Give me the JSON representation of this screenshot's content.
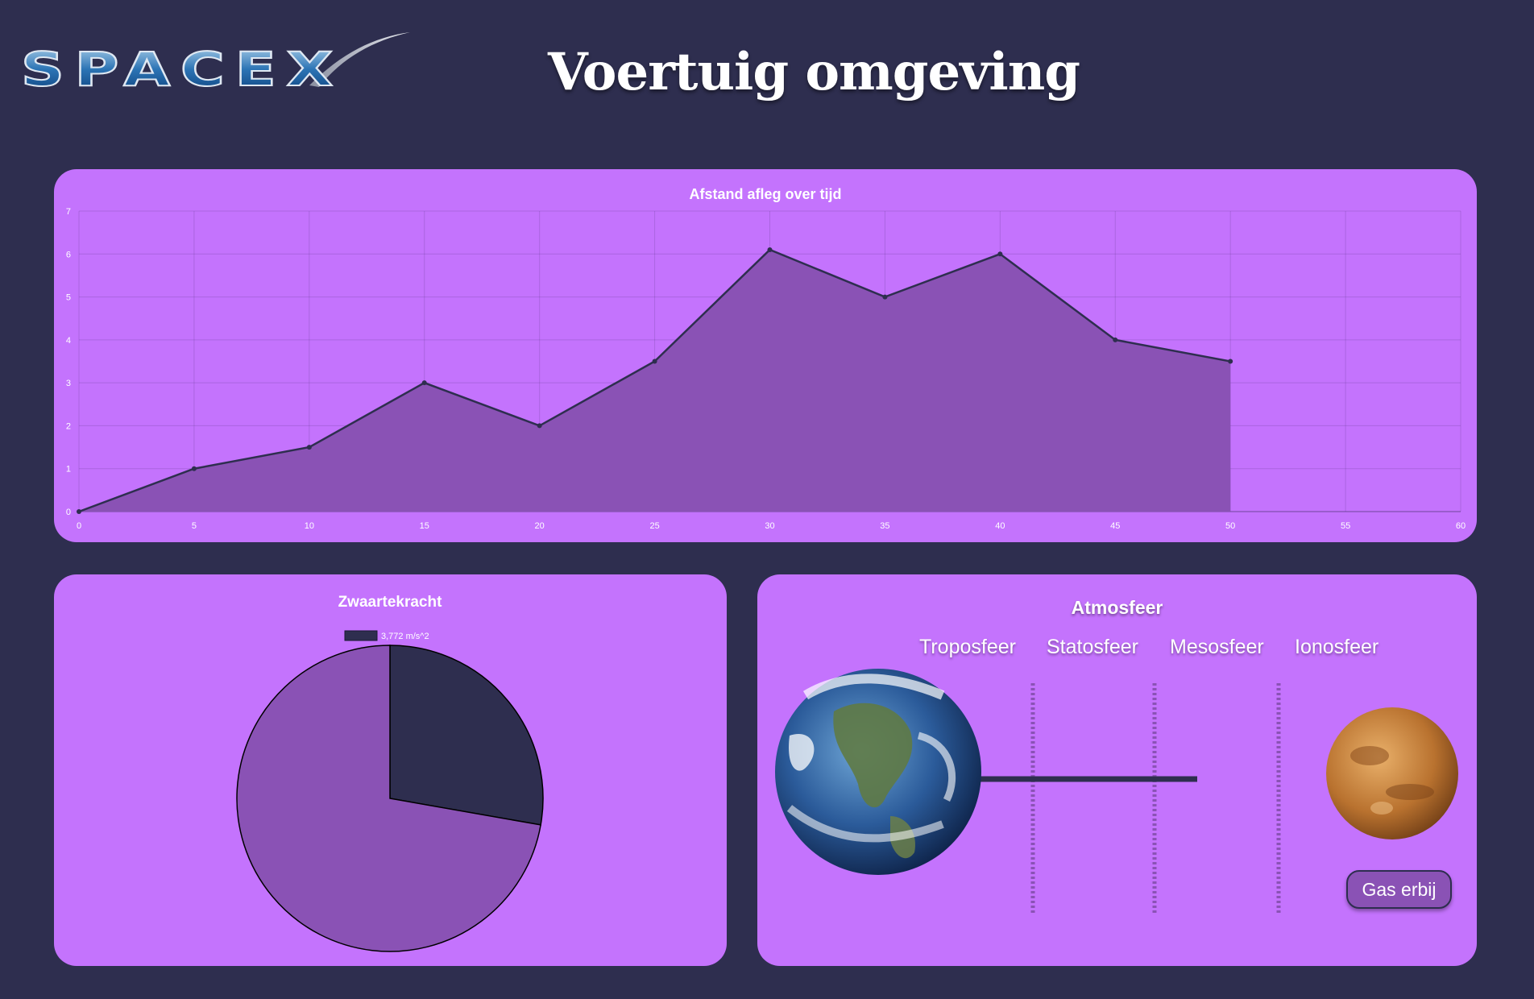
{
  "header": {
    "logo_text": "SPACEX",
    "title": "Voertuig omgeving"
  },
  "colors": {
    "background": "#2e2e4f",
    "card": "#c473fd",
    "fill": "#8a52b5",
    "dark": "#2e2e4f"
  },
  "distance_chart": {
    "chart_data": {
      "type": "area",
      "title": "Afstand afleg over tijd",
      "x": [
        0,
        5,
        10,
        15,
        20,
        25,
        30,
        35,
        40,
        45,
        50
      ],
      "values": [
        0,
        1,
        1.5,
        3,
        2,
        3.5,
        6.1,
        5,
        6,
        4,
        3.5
      ],
      "xlim": [
        0,
        60
      ],
      "ylim": [
        0,
        7
      ],
      "x_ticks": [
        "0",
        "5",
        "10",
        "15",
        "20",
        "25",
        "30",
        "35",
        "40",
        "45",
        "50",
        "55",
        "60"
      ],
      "y_ticks": [
        "0",
        "1",
        "2",
        "3",
        "4",
        "5",
        "6",
        "7"
      ],
      "grid": true
    }
  },
  "gravity_chart": {
    "chart_data": {
      "type": "pie",
      "title": "Zwaartekracht",
      "legend": "3,772 m/s^2",
      "legend_placement": "top",
      "slices": [
        {
          "label": "3,772 m/s^2",
          "value": 3.772,
          "color": "#2e2e4f"
        },
        {
          "label": "",
          "value": 9.81,
          "color": "#8a52b5"
        }
      ]
    }
  },
  "atmosphere": {
    "title": "Atmosfeer",
    "layers": [
      "Troposfeer",
      "Statosfeer",
      "Mesosfeer",
      "Ionosfeer"
    ],
    "start_planet_icon": "earth-icon",
    "end_planet_icon": "mars-icon",
    "button_label": "Gas erbij"
  }
}
